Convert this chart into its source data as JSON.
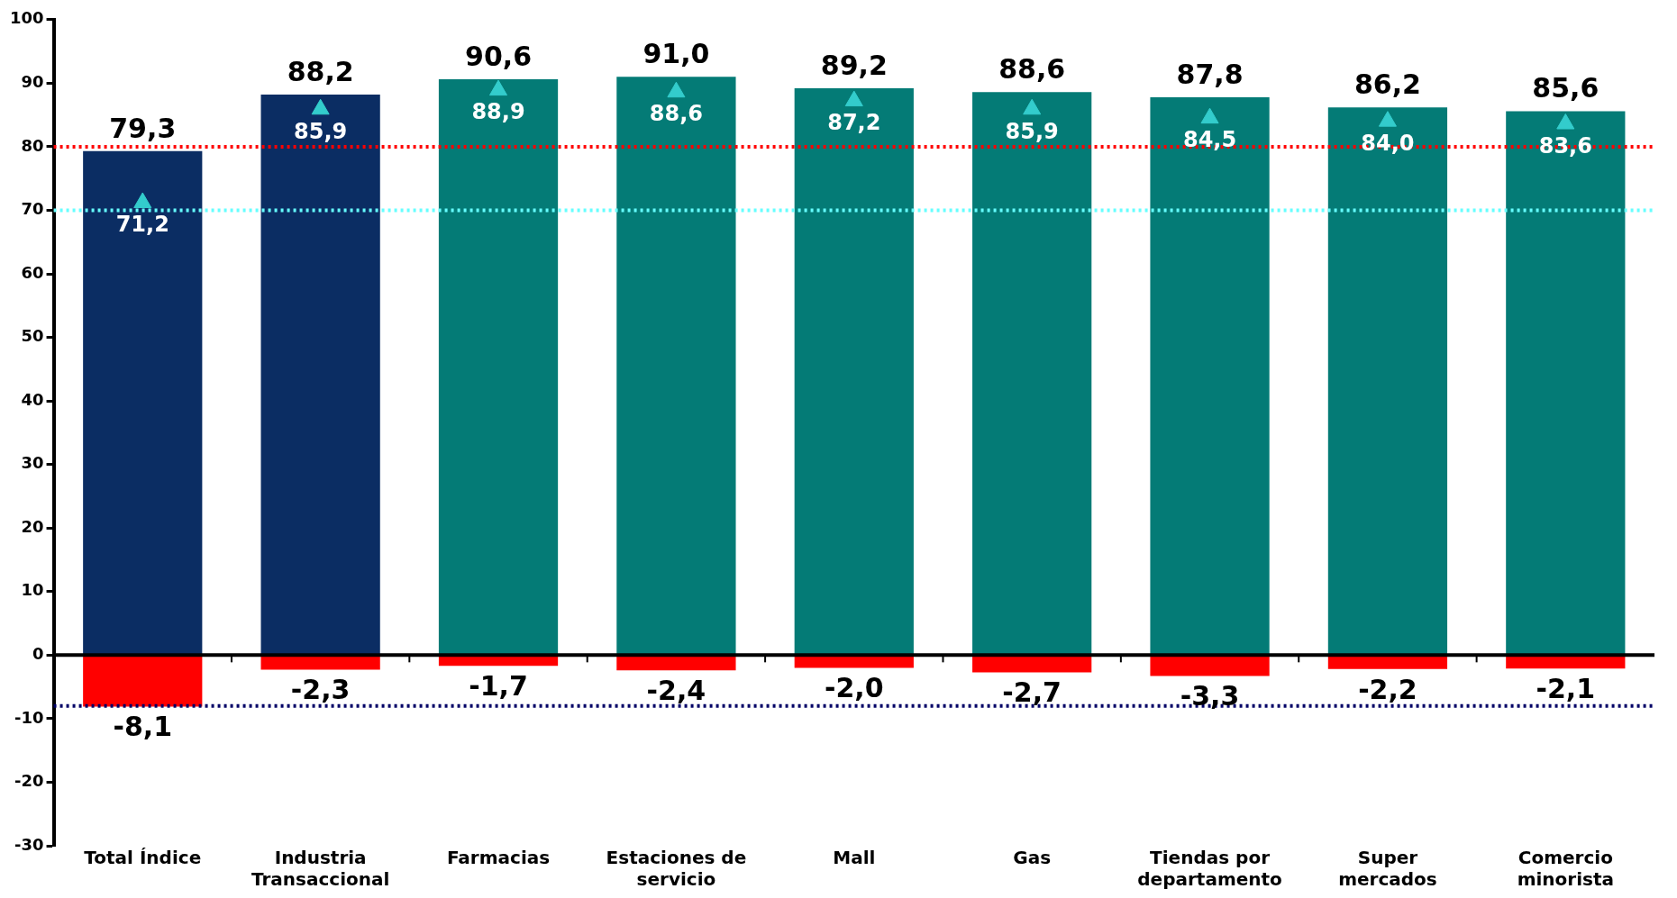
{
  "chart_data": {
    "type": "bar",
    "stacked": true,
    "categories": [
      "Total Índice",
      "Industria Transaccional",
      "Farmacias",
      "Estaciones de servicio",
      "Mall",
      "Gas",
      "Tiendas por departamento",
      "Super mercados",
      "Comercio minorista"
    ],
    "series": [
      {
        "colors": [
          "#0b2d63",
          "#0b2d63",
          "#047b76",
          "#047b76",
          "#047b76",
          "#047b76",
          "#047b76",
          "#047b76",
          "#047b76"
        ],
        "values": [
          79.3,
          88.2,
          90.6,
          91.0,
          89.2,
          88.6,
          87.8,
          86.2,
          85.6
        ],
        "value_labels": [
          "79,3",
          "88,2",
          "90,6",
          "91,0",
          "89,2",
          "88,6",
          "87,8",
          "86,2",
          "85,6"
        ]
      },
      {
        "color": "#ff0000",
        "values": [
          -8.1,
          -2.3,
          -1.7,
          -2.4,
          -2.0,
          -2.7,
          -3.3,
          -2.2,
          -2.1
        ],
        "value_labels": [
          "-8,1",
          "-2,3",
          "-1,7",
          "-2,4",
          "-2,0",
          "-2,7",
          "-3,3",
          "-2,2",
          "-2,1"
        ]
      },
      {
        "type": "scatter",
        "marker": "triangle",
        "color": "#33cccc",
        "values": [
          71.2,
          85.9,
          88.9,
          88.6,
          87.2,
          85.9,
          84.5,
          84.0,
          83.6
        ],
        "value_labels": [
          "71,2",
          "85,9",
          "88,9",
          "88,6",
          "87,2",
          "85,9",
          "84,5",
          "84,0",
          "83,6"
        ]
      }
    ],
    "ylim": [
      -30,
      100
    ],
    "yticks": [
      -30,
      -20,
      -10,
      0,
      10,
      20,
      30,
      40,
      50,
      60,
      70,
      80,
      90,
      100
    ],
    "ref_lines": [
      {
        "axis": "y",
        "value": 80,
        "color": "#ff0000",
        "line_style": "dotted"
      },
      {
        "axis": "y",
        "value": 70,
        "color": "#66ffff",
        "line_style": "dotted"
      },
      {
        "axis": "y",
        "value": -8,
        "color": "#000066",
        "line_style": "dotted"
      }
    ],
    "grid": false,
    "legend": false
  }
}
